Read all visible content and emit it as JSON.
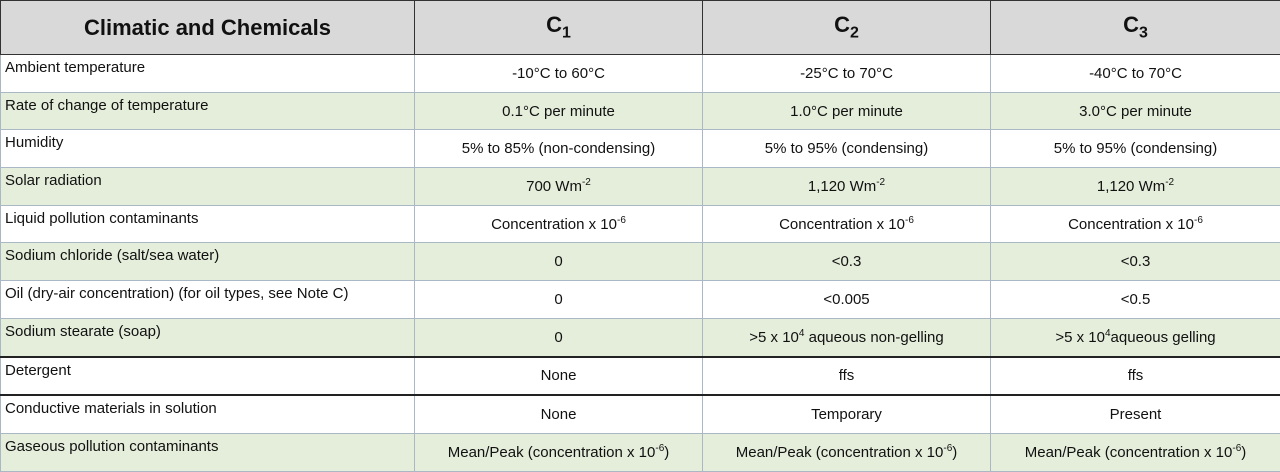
{
  "table": {
    "header": [
      "Climatic and Chemicals",
      {
        "text": "C",
        "sub": "1"
      },
      {
        "text": "C",
        "sub": "2"
      },
      {
        "text": "C",
        "sub": "3"
      }
    ],
    "rows": [
      [
        "Ambient temperature",
        "-10°C to 60°C",
        "-25°C to 70°C",
        "-40°C to 70°C"
      ],
      [
        "Rate of change of temperature",
        "0.1°C per minute",
        "1.0°C per minute",
        "3.0°C per minute"
      ],
      [
        "Humidity",
        "5% to 85% (non-condensing)",
        "5% to 95% (condensing)",
        "5% to 95% (condensing)"
      ],
      [
        "Solar radiation",
        {
          "text": "700 Wm",
          "sup": "-2"
        },
        {
          "text": "1,120 Wm",
          "sup": "-2"
        },
        {
          "text": "1,120 Wm",
          "sup": "-2"
        }
      ],
      [
        "Liquid pollution contaminants",
        {
          "text": "Concentration x 10",
          "sup": "-6"
        },
        {
          "text": "Concentration x 10",
          "sup": "-6"
        },
        {
          "text": "Concentration x 10",
          "sup": "-6"
        }
      ],
      [
        "Sodium chloride (salt/sea water)",
        "0",
        "<0.3",
        "<0.3"
      ],
      [
        "Oil (dry-air concentration) (for oil types, see Note C)",
        "0",
        "<0.005",
        "<0.5"
      ],
      [
        "Sodium stearate (soap)",
        "0",
        {
          "text": ">5 x 10",
          "sup": "4",
          "after": " aqueous non-gelling"
        },
        {
          "text": ">5 x 10",
          "sup": "4",
          "after": "aqueous gelling"
        }
      ],
      [
        "Detergent",
        "None",
        "ffs",
        "ffs"
      ],
      [
        "Conductive materials in solution",
        "None",
        "Temporary",
        "Present"
      ],
      [
        "Gaseous pollution contaminants",
        {
          "text": "Mean/Peak (concentration x 10",
          "sup": "-6",
          "after": ")"
        },
        {
          "text": "Mean/Peak (concentration x 10",
          "sup": "-6",
          "after": ")"
        },
        {
          "text": "Mean/Peak (concentration x 10",
          "sup": "-6",
          "after": ")"
        }
      ]
    ]
  }
}
